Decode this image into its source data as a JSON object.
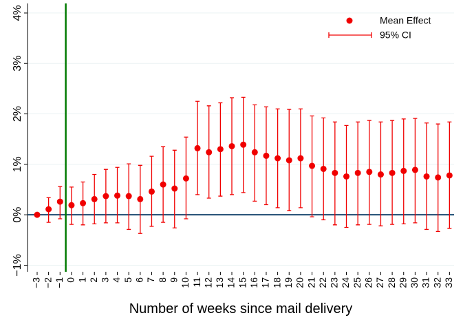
{
  "chart_data": {
    "type": "errorbar",
    "x_label": "Number of weeks since mail delivery",
    "x": [
      -3,
      -2,
      -1,
      0,
      1,
      2,
      3,
      4,
      5,
      6,
      7,
      8,
      9,
      10,
      11,
      12,
      13,
      14,
      15,
      16,
      17,
      18,
      19,
      20,
      21,
      22,
      23,
      24,
      25,
      26,
      27,
      28,
      29,
      30,
      31,
      32,
      33
    ],
    "series": [
      {
        "name": "Mean Effect",
        "color": "#f00000",
        "values": [
          0,
          0.11,
          0.26,
          0.19,
          0.23,
          0.31,
          0.37,
          0.38,
          0.37,
          0.31,
          0.46,
          0.6,
          0.52,
          0.72,
          1.32,
          1.24,
          1.3,
          1.36,
          1.39,
          1.24,
          1.17,
          1.12,
          1.08,
          1.12,
          0.97,
          0.91,
          0.83,
          0.76,
          0.83,
          0.85,
          0.8,
          0.83,
          0.87,
          0.89,
          0.76,
          0.74,
          0.78
        ]
      },
      {
        "name": "95% CI",
        "color": "#f00000",
        "ci_low": [
          0,
          -0.15,
          -0.08,
          -0.19,
          -0.2,
          -0.18,
          -0.16,
          -0.16,
          -0.29,
          -0.37,
          -0.23,
          -0.15,
          -0.26,
          -0.08,
          0.4,
          0.33,
          0.37,
          0.4,
          0.44,
          0.27,
          0.2,
          0.14,
          0.08,
          0.14,
          -0.04,
          -0.1,
          -0.2,
          -0.25,
          -0.2,
          -0.19,
          -0.22,
          -0.19,
          -0.18,
          -0.16,
          -0.29,
          -0.33,
          -0.27
        ],
        "ci_high": [
          0,
          0.34,
          0.56,
          0.55,
          0.65,
          0.8,
          0.9,
          0.94,
          1.01,
          0.98,
          1.16,
          1.35,
          1.28,
          1.54,
          2.25,
          2.16,
          2.22,
          2.32,
          2.33,
          2.18,
          2.14,
          2.1,
          2.09,
          2.1,
          1.96,
          1.92,
          1.84,
          1.77,
          1.84,
          1.87,
          1.84,
          1.87,
          1.9,
          1.91,
          1.82,
          1.8,
          1.84
        ]
      }
    ],
    "xlim": [
      -3.84,
      33.4
    ],
    "xticks": [
      {
        "value": -3,
        "label": "−3"
      },
      {
        "value": -2,
        "label": "−2"
      },
      {
        "value": -1,
        "label": "−1"
      },
      0,
      1,
      2,
      3,
      4,
      5,
      6,
      7,
      8,
      9,
      10,
      11,
      12,
      13,
      14,
      15,
      16,
      17,
      18,
      19,
      20,
      21,
      22,
      23,
      24,
      25,
      26,
      27,
      28,
      29,
      30,
      31,
      32,
      33
    ],
    "ylim": [
      -1.13,
      4.19
    ],
    "yticks": [
      {
        "value": -1,
        "label": "−1%"
      },
      {
        "value": 0,
        "label": "0%"
      },
      {
        "value": 1,
        "label": "1%"
      },
      {
        "value": 2,
        "label": "2%"
      },
      {
        "value": 3,
        "label": "3%"
      },
      {
        "value": 4,
        "label": "4%"
      }
    ],
    "grid": true,
    "zero_line": {
      "value": 0,
      "color": "#1a476f"
    },
    "vline": {
      "value": -0.5,
      "color": "#007a00"
    },
    "legend": "top-right"
  }
}
